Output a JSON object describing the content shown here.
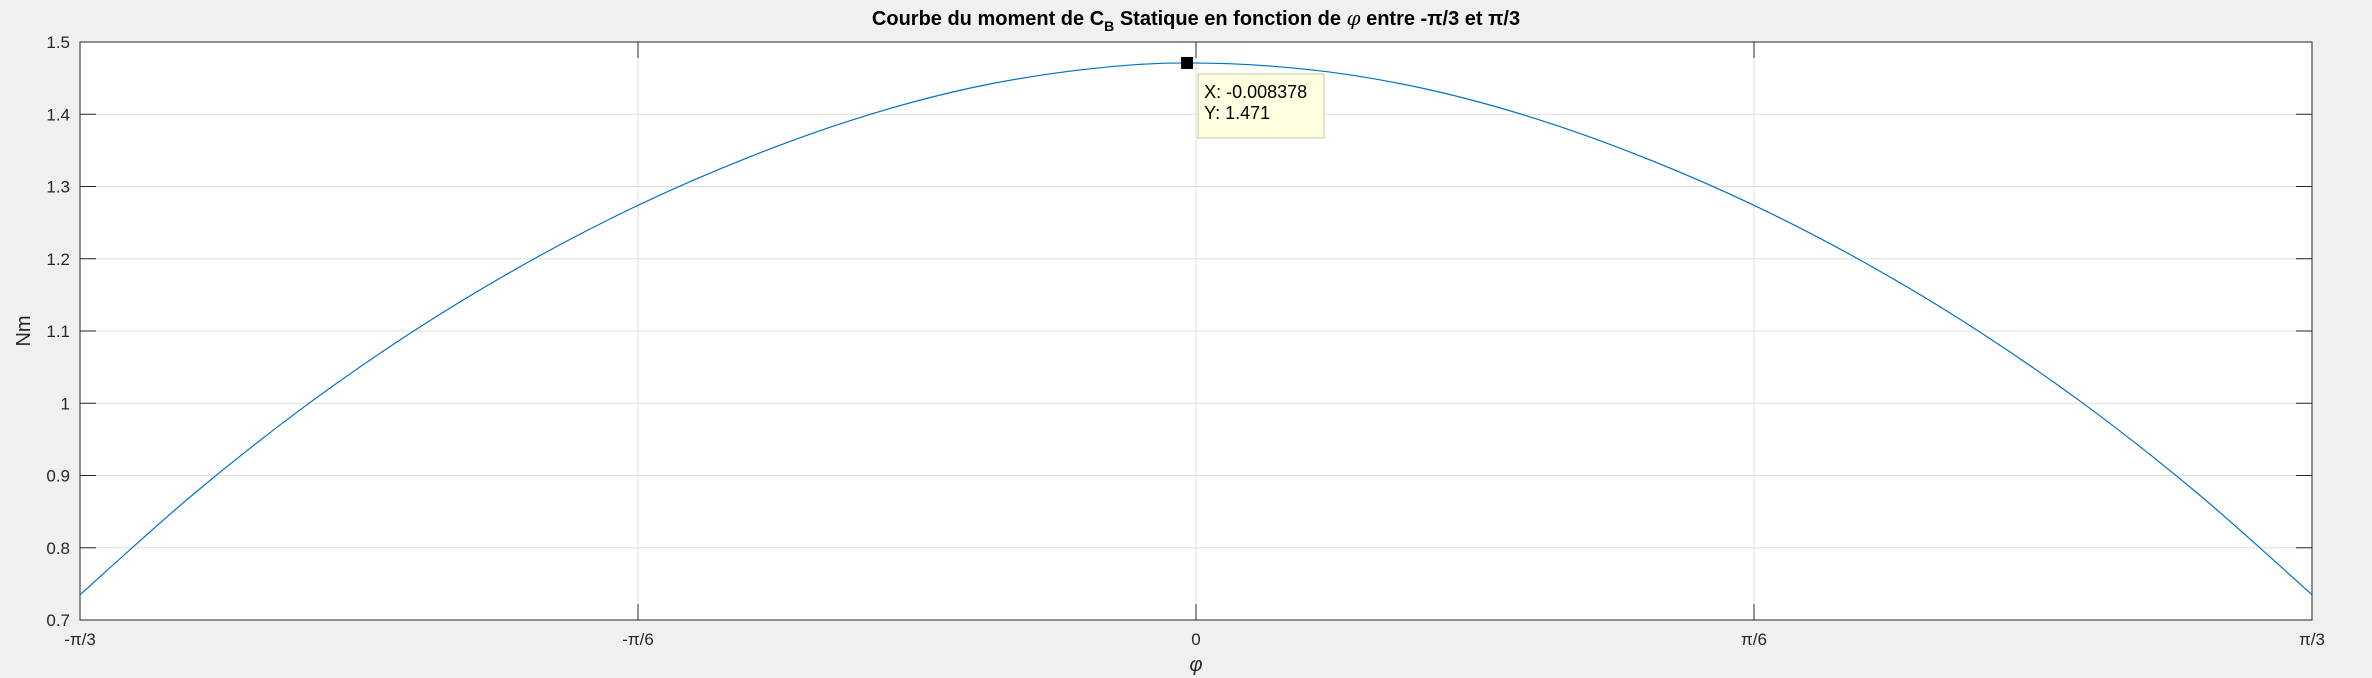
{
  "chart_data": {
    "type": "line",
    "title": {
      "prefix": "Courbe du moment de C",
      "subscript": "B",
      "middle": " Statique en fonction de ",
      "symbol": "φ",
      "suffix": " entre -π/3 et π/3"
    },
    "xlabel": "φ",
    "ylabel": "Nm",
    "xlim": [
      -1.0472,
      1.0472
    ],
    "ylim": [
      0.7,
      1.5
    ],
    "xticks": [
      {
        "value": -1.0472,
        "label": "-π/3"
      },
      {
        "value": -0.5236,
        "label": "-π/6"
      },
      {
        "value": 0,
        "label": "0"
      },
      {
        "value": 0.5236,
        "label": "π/6"
      },
      {
        "value": 1.0472,
        "label": "π/3"
      }
    ],
    "yticks": [
      {
        "value": 0.7,
        "label": "0.7"
      },
      {
        "value": 0.8,
        "label": "0.8"
      },
      {
        "value": 0.9,
        "label": "0.9"
      },
      {
        "value": 1.0,
        "label": "1"
      },
      {
        "value": 1.1,
        "label": "1.1"
      },
      {
        "value": 1.2,
        "label": "1.2"
      },
      {
        "value": 1.3,
        "label": "1.3"
      },
      {
        "value": 1.4,
        "label": "1.4"
      },
      {
        "value": 1.5,
        "label": "1.5"
      }
    ],
    "grid": true,
    "series": [
      {
        "color": "#0072bd",
        "x": [
          -1.0472,
          -0.9425,
          -0.8378,
          -0.733,
          -0.6283,
          -0.5236,
          -0.4189,
          -0.3142,
          -0.2094,
          -0.1047,
          -0.008378,
          0.1047,
          0.2094,
          0.3142,
          0.4189,
          0.5236,
          0.6283,
          0.733,
          0.8378,
          0.9425,
          1.0472
        ],
        "y": [
          0.735,
          0.872,
          0.994,
          1.101,
          1.194,
          1.274,
          1.341,
          1.396,
          1.437,
          1.462,
          1.471,
          1.462,
          1.437,
          1.396,
          1.341,
          1.274,
          1.194,
          1.101,
          0.994,
          0.872,
          0.735
        ]
      }
    ],
    "datatip": {
      "x": -0.008378,
      "y": 1.471,
      "x_text": "X: -0.008378",
      "y_text": "Y: 1.471"
    }
  }
}
